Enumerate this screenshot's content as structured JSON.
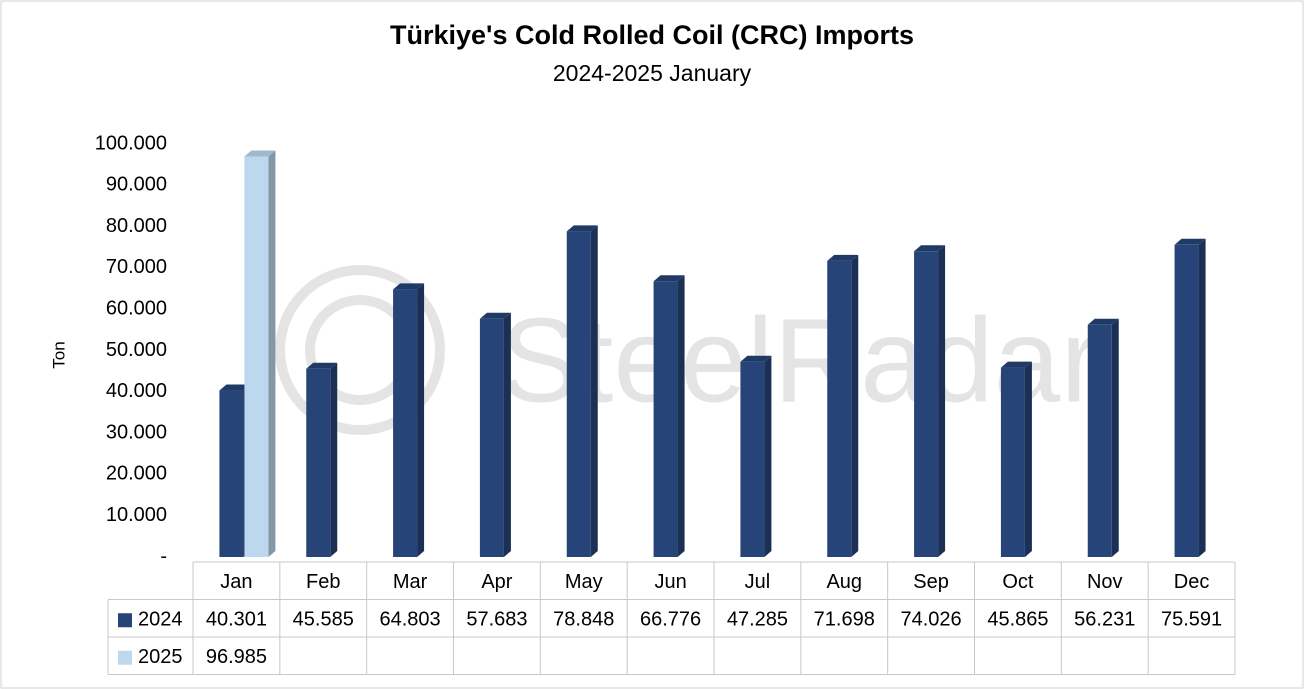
{
  "chart_data": {
    "type": "bar3d",
    "title": "Türkiye's Cold Rolled Coil (CRC) Imports",
    "subtitle": "2024-2025 January",
    "y_label": "Ton",
    "watermark": "SteelRadar",
    "categories": [
      "Jan",
      "Feb",
      "Mar",
      "Apr",
      "May",
      "Jun",
      "Jul",
      "Aug",
      "Sep",
      "Oct",
      "Nov",
      "Dec"
    ],
    "series": [
      {
        "name": "2024",
        "color": "#264478",
        "values": [
          40301,
          45585,
          64803,
          57683,
          78848,
          66776,
          47285,
          71698,
          74026,
          45865,
          56231,
          75591
        ],
        "value_labels": [
          "40.301",
          "45.585",
          "64.803",
          "57.683",
          "78.848",
          "66.776",
          "47.285",
          "71.698",
          "74.026",
          "45.865",
          "56.231",
          "75.591"
        ]
      },
      {
        "name": "2025",
        "color": "#bdd7ee",
        "values": [
          96985,
          null,
          null,
          null,
          null,
          null,
          null,
          null,
          null,
          null,
          null,
          null
        ],
        "value_labels": [
          "96.985",
          null,
          null,
          null,
          null,
          null,
          null,
          null,
          null,
          null,
          null,
          null
        ]
      }
    ],
    "ylim": [
      0,
      100000
    ],
    "yticks": [
      {
        "value": 0,
        "label": "-"
      },
      {
        "value": 10000,
        "label": "10.000"
      },
      {
        "value": 20000,
        "label": "20.000"
      },
      {
        "value": 30000,
        "label": "30.000"
      },
      {
        "value": 40000,
        "label": "40.000"
      },
      {
        "value": 50000,
        "label": "50.000"
      },
      {
        "value": 60000,
        "label": "60.000"
      },
      {
        "value": 70000,
        "label": "70.000"
      },
      {
        "value": 80000,
        "label": "80.000"
      },
      {
        "value": 90000,
        "label": "90.000"
      },
      {
        "value": 100000,
        "label": "100.000"
      }
    ]
  }
}
